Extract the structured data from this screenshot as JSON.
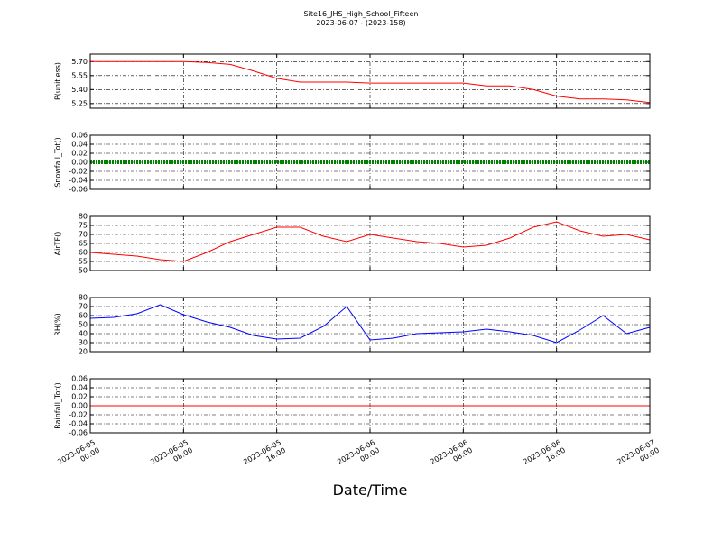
{
  "title": "Site16_JHS_High_School_Fifteen",
  "subtitle": "2023-06-07 - (2023-158)",
  "x_axis": {
    "label": "Date/Time",
    "xlim": [
      "2023-06-05 00:00",
      "2023-06-07 00:00"
    ],
    "xticks": [
      {
        "value": "2023-06-05 00:00",
        "label": "2023-06-05\n00:00"
      },
      {
        "value": "2023-06-05 08:00",
        "label": "2023-06-05\n08:00"
      },
      {
        "value": "2023-06-05 16:00",
        "label": "2023-06-05\n16:00"
      },
      {
        "value": "2023-06-06 00:00",
        "label": "2023-06-06\n00:00"
      },
      {
        "value": "2023-06-06 08:00",
        "label": "2023-06-06\n08:00"
      },
      {
        "value": "2023-06-06 16:00",
        "label": "2023-06-06\n16:00"
      },
      {
        "value": "2023-06-07 00:00",
        "label": "2023-06-07\n00:00"
      }
    ],
    "x": [
      "2023-06-05 00:00",
      "2023-06-05 02:00",
      "2023-06-05 04:00",
      "2023-06-05 06:00",
      "2023-06-05 08:00",
      "2023-06-05 10:00",
      "2023-06-05 12:00",
      "2023-06-05 14:00",
      "2023-06-05 16:00",
      "2023-06-05 18:00",
      "2023-06-05 20:00",
      "2023-06-05 22:00",
      "2023-06-06 00:00",
      "2023-06-06 02:00",
      "2023-06-06 04:00",
      "2023-06-06 06:00",
      "2023-06-06 08:00",
      "2023-06-06 10:00",
      "2023-06-06 12:00",
      "2023-06-06 14:00",
      "2023-06-06 16:00",
      "2023-06-06 18:00",
      "2023-06-06 20:00",
      "2023-06-06 22:00",
      "2023-06-07 00:00"
    ]
  },
  "chart_data": [
    {
      "type": "line",
      "ylabel": "P(unitless)",
      "ylim": [
        5.2,
        5.78
      ],
      "yticks": [
        5.25,
        {
          "value": 5.4,
          "label": "5.40"
        },
        5.55,
        {
          "value": 5.7,
          "label": "5.70"
        }
      ],
      "grid": true,
      "series": [
        {
          "color": "#ff0000",
          "values": [
            5.7,
            5.7,
            5.7,
            5.7,
            5.7,
            5.69,
            5.67,
            5.6,
            5.52,
            5.48,
            5.48,
            5.48,
            5.47,
            5.47,
            5.47,
            5.47,
            5.47,
            5.44,
            5.44,
            5.4,
            5.33,
            5.3,
            5.3,
            5.29,
            5.26
          ]
        }
      ]
    },
    {
      "type": "line",
      "ylabel": "Snowfall_Tot()",
      "ylim": [
        -0.06,
        0.06
      ],
      "yticks": [
        -0.06,
        -0.04,
        -0.02,
        {
          "value": 0,
          "label": "0.00"
        },
        0.02,
        0.04,
        0.06
      ],
      "grid": true,
      "series": [
        {
          "color": "#008000",
          "marker": "o",
          "values": [
            0,
            0,
            0,
            0,
            0,
            0,
            0,
            0,
            0,
            0,
            0,
            0,
            0,
            0,
            0,
            0,
            0,
            0,
            0,
            0,
            0,
            0,
            0,
            0,
            0
          ]
        }
      ]
    },
    {
      "type": "line",
      "ylabel": "AirTF()",
      "ylim": [
        50,
        80
      ],
      "yticks": [
        50,
        55,
        60,
        65,
        70,
        75,
        80
      ],
      "grid": true,
      "series": [
        {
          "color": "#ff0000",
          "values": [
            60,
            59,
            58,
            56,
            55,
            60,
            66,
            70,
            74,
            74,
            69,
            66,
            70,
            68,
            66,
            65,
            63,
            64,
            68,
            74,
            77,
            72,
            69,
            70,
            67
          ]
        }
      ]
    },
    {
      "type": "line",
      "ylabel": "RH(%)",
      "ylim": [
        20,
        80
      ],
      "yticks": [
        20,
        30,
        40,
        50,
        60,
        70,
        80
      ],
      "grid": true,
      "series": [
        {
          "color": "#0000ff",
          "values": [
            57,
            58,
            62,
            72,
            61,
            53,
            47,
            38,
            34,
            35,
            48,
            70,
            33,
            35,
            40,
            41,
            42,
            45,
            42,
            38,
            30,
            44,
            60,
            40,
            47
          ]
        }
      ]
    },
    {
      "type": "line",
      "ylabel": "Rainfall_Tot()",
      "ylim": [
        -0.06,
        0.06
      ],
      "yticks": [
        -0.06,
        -0.04,
        -0.02,
        {
          "value": 0,
          "label": "0.00"
        },
        0.02,
        0.04,
        0.06
      ],
      "grid": true,
      "series": [
        {
          "color": "#ff0000",
          "values": [
            0,
            0,
            0,
            0,
            0,
            0,
            0,
            0,
            0,
            0,
            0,
            0,
            0,
            0,
            0,
            0,
            0,
            0,
            0,
            0,
            0,
            0,
            0,
            0,
            0
          ]
        }
      ]
    }
  ]
}
